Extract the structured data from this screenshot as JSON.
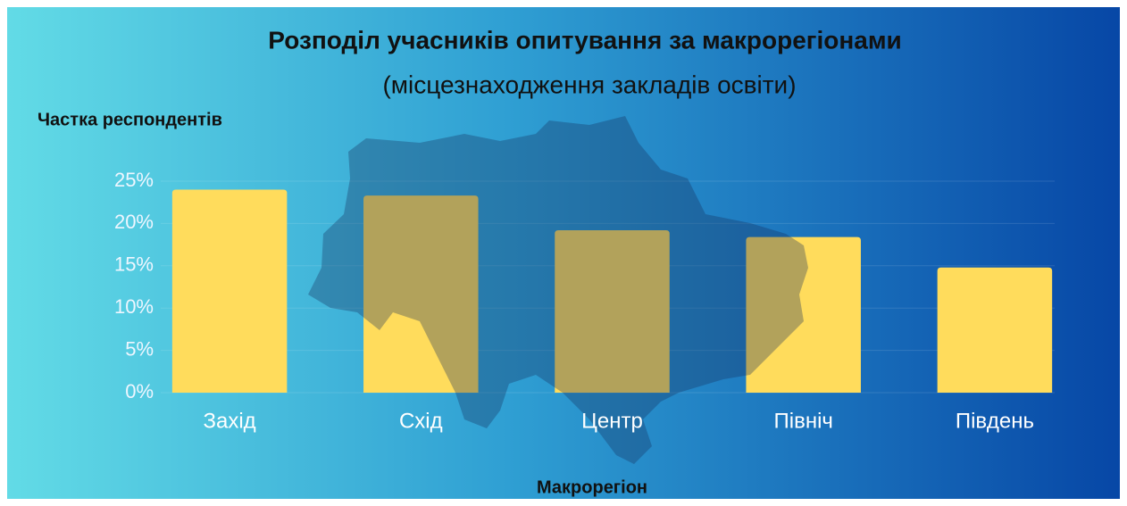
{
  "chart_data": {
    "type": "bar",
    "title": "Розподіл учасників опитування за макрорегіонами",
    "subtitle": "(місцезнаходження закладів освіти)",
    "y_label": "Частка респондентів",
    "x_label": "Макрорегіон",
    "categories": [
      "Захід",
      "Схід",
      "Центр",
      "Північ",
      "Південь"
    ],
    "values": [
      24,
      23.3,
      19.2,
      18.4,
      14.8
    ],
    "color": "#ffdc5c",
    "ylim": [
      0,
      25
    ],
    "yticks": [
      {
        "value": 0,
        "label": "0%"
      },
      {
        "value": 5,
        "label": "5%"
      },
      {
        "value": 10,
        "label": "10%"
      },
      {
        "value": 15,
        "label": "15%"
      },
      {
        "value": 20,
        "label": "20%"
      },
      {
        "value": 25,
        "label": "25%"
      }
    ],
    "grid": true
  }
}
